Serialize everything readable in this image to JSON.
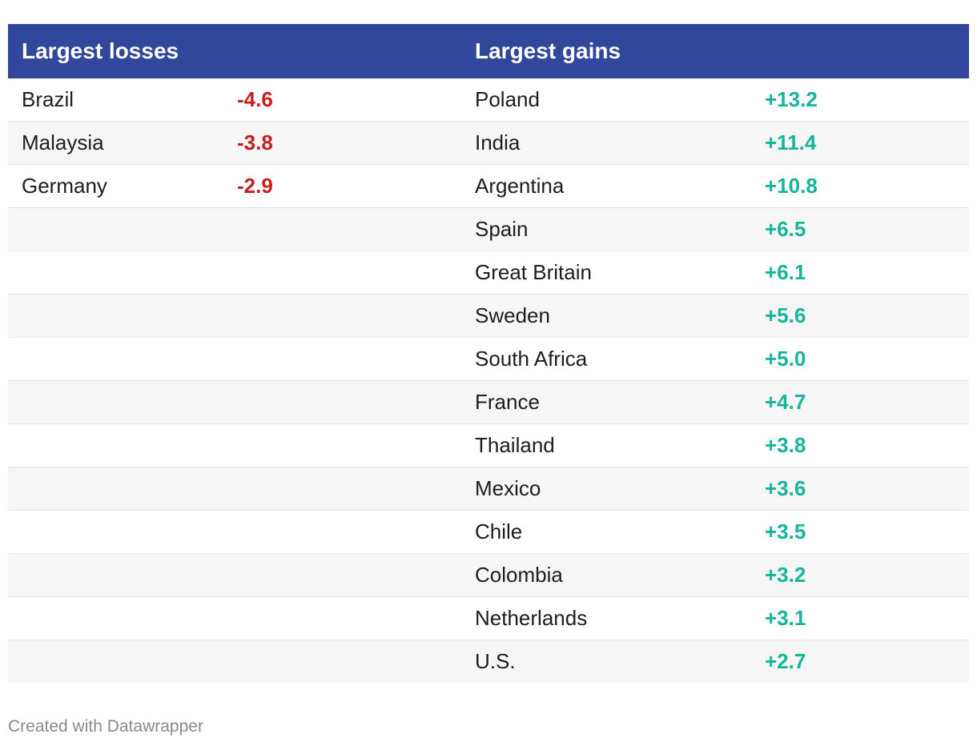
{
  "chart_data": {
    "type": "table",
    "columns": [
      "Largest losses",
      "",
      "Largest gains",
      ""
    ],
    "losses": [
      {
        "country": "Brazil",
        "value": "-4.6"
      },
      {
        "country": "Malaysia",
        "value": "-3.8"
      },
      {
        "country": "Germany",
        "value": "-2.9"
      }
    ],
    "gains": [
      {
        "country": "Poland",
        "value": "+13.2"
      },
      {
        "country": "India",
        "value": "+11.4"
      },
      {
        "country": "Argentina",
        "value": "+10.8"
      },
      {
        "country": "Spain",
        "value": "+6.5"
      },
      {
        "country": "Great Britain",
        "value": "+6.1"
      },
      {
        "country": "Sweden",
        "value": "+5.6"
      },
      {
        "country": "South Africa",
        "value": "+5.0"
      },
      {
        "country": "France",
        "value": "+4.7"
      },
      {
        "country": "Thailand",
        "value": "+3.8"
      },
      {
        "country": "Mexico",
        "value": "+3.6"
      },
      {
        "country": "Chile",
        "value": "+3.5"
      },
      {
        "country": "Colombia",
        "value": "+3.2"
      },
      {
        "country": "Netherlands",
        "value": "+3.1"
      },
      {
        "country": "U.S.",
        "value": "+2.7"
      }
    ],
    "colors": {
      "header_background": "#30479c",
      "loss_value": "#c71e1d",
      "gain_value": "#15b59a",
      "striped_row": "#f6f6f6"
    }
  },
  "footer": {
    "credit": "Created with Datawrapper"
  }
}
